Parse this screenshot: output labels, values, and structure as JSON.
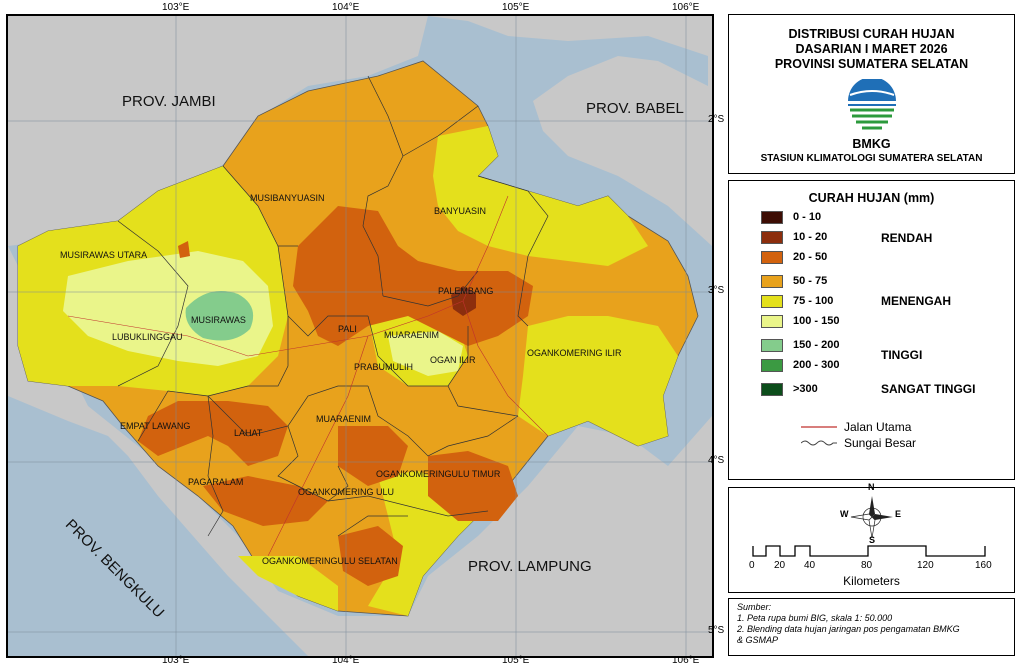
{
  "map": {
    "lon_ticks": [
      "103°E",
      "104°E",
      "105°E",
      "106°E"
    ],
    "lat_ticks": [
      "2°S",
      "3°S",
      "4°S",
      "5°S"
    ],
    "provinces": {
      "jambi": "PROV. JAMBI",
      "babel": "PROV. BABEL",
      "bengkulu": "PROV. BENGKULU",
      "lampung": "PROV. LAMPUNG"
    },
    "regencies": {
      "musibanyuasin": "MUSIBANYUASIN",
      "banyuasin": "BANYUASIN",
      "musirawas_utara": "MUSIRAWAS UTARA",
      "palembang": "PALEMBANG",
      "musirawas": "MUSIRAWAS",
      "lubuklinggau": "LUBUKLINGGAU",
      "pali": "PALI",
      "muaraenim_n": "MUARAENIM",
      "ogan_ilir": "OGAN ILIR",
      "prabumulih": "PRABUMULIH",
      "ogankomering_ilir": "OGANKOMERING ILIR",
      "empat_lawang": "EMPAT LAWANG",
      "lahat": "LAHAT",
      "muaraenim_s": "MUARAENIM",
      "pagaralam": "PAGARALAM",
      "okut": "OGANKOMERINGULU TIMUR",
      "oku": "OGANKOMERING ULU",
      "okus": "OGANKOMERINGULU SELATAN"
    }
  },
  "title": {
    "line1": "DISTRIBUSI CURAH HUJAN",
    "line2": "DASARIAN I MARET 2026",
    "line3": "PROVINSI SUMATERA SELATAN",
    "agency": "BMKG",
    "station": "STASIUN KLIMATOLOGI SUMATERA SELATAN"
  },
  "legend": {
    "title": "CURAH HUJAN (mm)",
    "classes": [
      {
        "label": "0 - 10",
        "color": "#3d0d04"
      },
      {
        "label": "10 - 20",
        "color": "#8c2e0d"
      },
      {
        "label": "20 - 50",
        "color": "#d2620e"
      },
      {
        "label": "50 - 75",
        "color": "#e8a21c"
      },
      {
        "label": "75 - 100",
        "color": "#e4e01c"
      },
      {
        "label": "100 - 150",
        "color": "#eaf58a"
      },
      {
        "label": "150 - 200",
        "color": "#84cc8c"
      },
      {
        "label": "200 - 300",
        "color": "#3b9a42"
      },
      {
        "label": ">300",
        "color": "#0c4d1b"
      }
    ],
    "categories": {
      "rendah": "RENDAH",
      "menengah": "MENENGAH",
      "tinggi": "TINGGI",
      "sangat_tinggi": "SANGAT TINGGI"
    },
    "lines": {
      "road": "Jalan Utama",
      "river": "Sungai Besar",
      "road_color": "#c0322e",
      "river_color": "#444444"
    }
  },
  "compass": {
    "n": "N",
    "s": "S",
    "e": "E",
    "w": "W"
  },
  "scale": {
    "ticks": [
      "0",
      "20",
      "40",
      "80",
      "120",
      "160"
    ],
    "unit": "Kilometers"
  },
  "source": {
    "heading": "Sumber:",
    "line1": "1. Peta rupa bumi BIG, skala 1: 50.000",
    "line2": "2. Blending data hujan jaringan pos pengamatan BMKG",
    "line3": "& GSMAP"
  }
}
